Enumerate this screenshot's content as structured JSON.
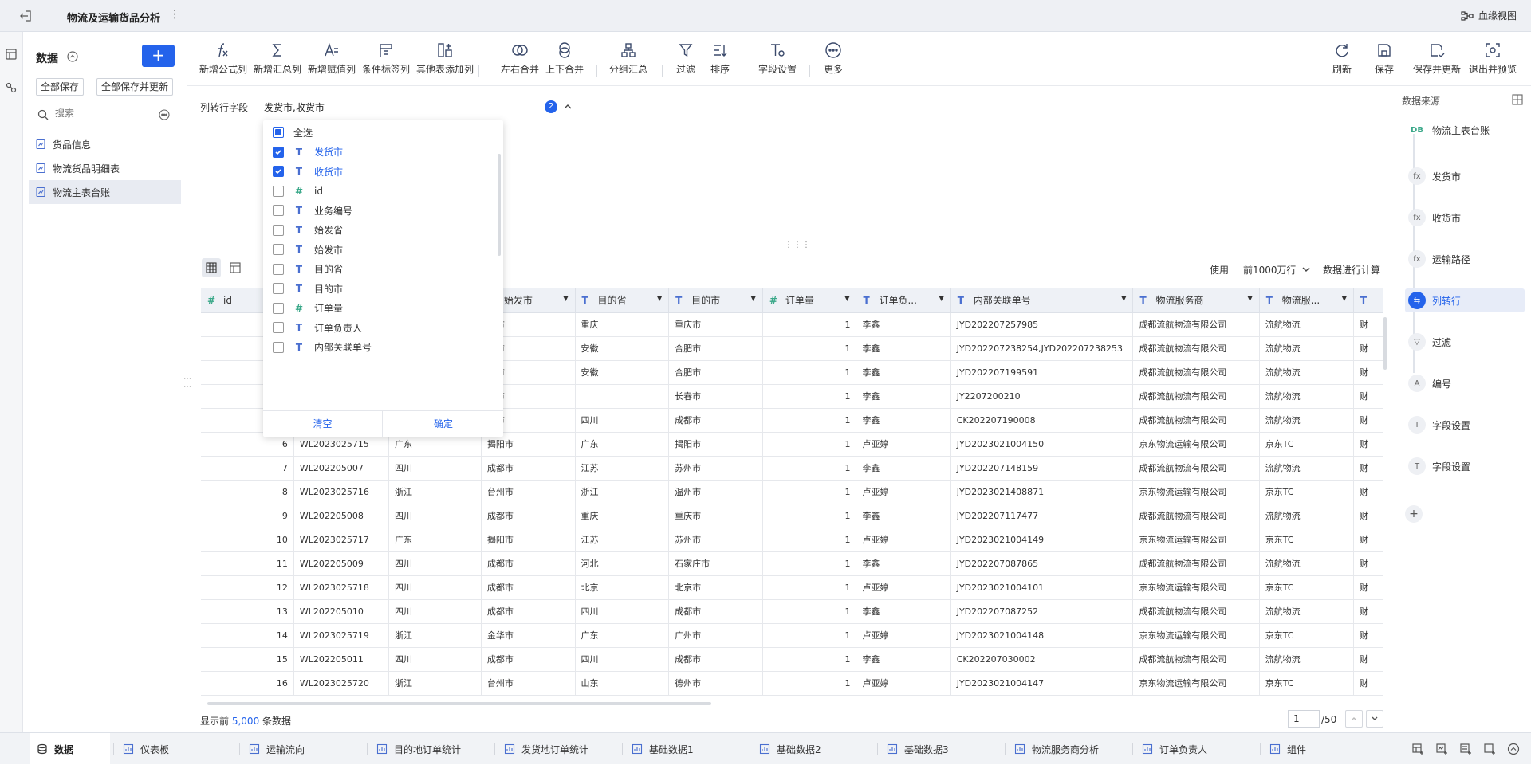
{
  "topbar": {
    "title": "物流及运输货品分析",
    "lineage": "血缘视图"
  },
  "sidebar": {
    "title": "数据",
    "save_all": "全部保存",
    "save_all_update": "全部保存并更新",
    "search_placeholder": "搜索",
    "items": [
      "货品信息",
      "物流货品明细表",
      "物流主表台账"
    ]
  },
  "toolbar": {
    "tools": [
      "新增公式列",
      "新增汇总列",
      "新增赋值列",
      "条件标签列",
      "其他表添加列",
      "左右合并",
      "上下合并",
      "分组汇总",
      "过滤",
      "排序",
      "字段设置",
      "更多"
    ],
    "right": [
      "刷新",
      "保存",
      "保存并更新",
      "退出并预览"
    ]
  },
  "config": {
    "label": "列转行字段",
    "value": "发货市,收货市",
    "count": "2"
  },
  "dropdown": {
    "options": [
      {
        "label": "全选",
        "type": "",
        "state": "part"
      },
      {
        "label": "发货市",
        "type": "T",
        "state": "on"
      },
      {
        "label": "收货市",
        "type": "T",
        "state": "on"
      },
      {
        "label": "id",
        "type": "#",
        "state": "off"
      },
      {
        "label": "业务编号",
        "type": "T",
        "state": "off"
      },
      {
        "label": "始发省",
        "type": "T",
        "state": "off"
      },
      {
        "label": "始发市",
        "type": "T",
        "state": "off"
      },
      {
        "label": "目的省",
        "type": "T",
        "state": "off"
      },
      {
        "label": "目的市",
        "type": "T",
        "state": "off"
      },
      {
        "label": "订单量",
        "type": "#",
        "state": "off"
      },
      {
        "label": "订单负责人",
        "type": "T",
        "state": "off"
      },
      {
        "label": "内部关联单号",
        "type": "T",
        "state": "off"
      }
    ],
    "clear": "清空",
    "confirm": "确定"
  },
  "gridhead": {
    "use": "使用",
    "limit": "前1000万行",
    "calc": "数据进行计算"
  },
  "table": {
    "columns": [
      {
        "label": "id",
        "type": "#"
      },
      {
        "label": "",
        "type": "T"
      },
      {
        "label": "",
        "type": "T"
      },
      {
        "label": "始发市",
        "type": "T"
      },
      {
        "label": "目的省",
        "type": "T"
      },
      {
        "label": "目的市",
        "type": "T"
      },
      {
        "label": "订单量",
        "type": "#"
      },
      {
        "label": "订单负...",
        "type": "T"
      },
      {
        "label": "内部关联单号",
        "type": "T"
      },
      {
        "label": "物流服务商",
        "type": "T"
      },
      {
        "label": "物流服...",
        "type": "T"
      },
      {
        "label": "",
        "type": "T"
      }
    ],
    "rows": [
      [
        "",
        "",
        "",
        "都市",
        "重庆",
        "重庆市",
        "1",
        "李鑫",
        "JYD202207257985",
        "成都流航物流有限公司",
        "流航物流",
        "财"
      ],
      [
        "",
        "",
        "",
        "都市",
        "安徽",
        "合肥市",
        "1",
        "李鑫",
        "JYD202207238254,JYD202207238253",
        "成都流航物流有限公司",
        "流航物流",
        "财"
      ],
      [
        "",
        "",
        "",
        "都市",
        "安徽",
        "合肥市",
        "1",
        "李鑫",
        "JYD202207199591",
        "成都流航物流有限公司",
        "流航物流",
        "财"
      ],
      [
        "",
        "",
        "",
        "都市",
        "",
        "长春市",
        "1",
        "李鑫",
        "JY2207200210",
        "成都流航物流有限公司",
        "流航物流",
        "财"
      ],
      [
        "",
        "",
        "",
        "都市",
        "四川",
        "成都市",
        "1",
        "李鑫",
        "CK202207190008",
        "成都流航物流有限公司",
        "流航物流",
        "财"
      ],
      [
        "6",
        "WL2023025715",
        "广东",
        "揭阳市",
        "广东",
        "揭阳市",
        "1",
        "卢亚婷",
        "JYD2023021004150",
        "京东物流运输有限公司",
        "京东TC",
        "财"
      ],
      [
        "7",
        "WL202205007",
        "四川",
        "成都市",
        "江苏",
        "苏州市",
        "1",
        "李鑫",
        "JYD202207148159",
        "成都流航物流有限公司",
        "流航物流",
        "财"
      ],
      [
        "8",
        "WL2023025716",
        "浙江",
        "台州市",
        "浙江",
        "温州市",
        "1",
        "卢亚婷",
        "JYD2023021408871",
        "京东物流运输有限公司",
        "京东TC",
        "财"
      ],
      [
        "9",
        "WL202205008",
        "四川",
        "成都市",
        "重庆",
        "重庆市",
        "1",
        "李鑫",
        "JYD202207117477",
        "成都流航物流有限公司",
        "流航物流",
        "财"
      ],
      [
        "10",
        "WL2023025717",
        "广东",
        "揭阳市",
        "江苏",
        "苏州市",
        "1",
        "卢亚婷",
        "JYD2023021004149",
        "京东物流运输有限公司",
        "京东TC",
        "财"
      ],
      [
        "11",
        "WL202205009",
        "四川",
        "成都市",
        "河北",
        "石家庄市",
        "1",
        "李鑫",
        "JYD202207087865",
        "成都流航物流有限公司",
        "流航物流",
        "财"
      ],
      [
        "12",
        "WL2023025718",
        "四川",
        "成都市",
        "北京",
        "北京市",
        "1",
        "卢亚婷",
        "JYD2023021004101",
        "京东物流运输有限公司",
        "京东TC",
        "财"
      ],
      [
        "13",
        "WL202205010",
        "四川",
        "成都市",
        "四川",
        "成都市",
        "1",
        "李鑫",
        "JYD202207087252",
        "成都流航物流有限公司",
        "流航物流",
        "财"
      ],
      [
        "14",
        "WL2023025719",
        "浙江",
        "金华市",
        "广东",
        "广州市",
        "1",
        "卢亚婷",
        "JYD2023021004148",
        "京东物流运输有限公司",
        "京东TC",
        "财"
      ],
      [
        "15",
        "WL202205011",
        "四川",
        "成都市",
        "四川",
        "成都市",
        "1",
        "李鑫",
        "CK202207030002",
        "成都流航物流有限公司",
        "流航物流",
        "财"
      ],
      [
        "16",
        "WL2023025720",
        "浙江",
        "台州市",
        "山东",
        "德州市",
        "1",
        "卢亚婷",
        "JYD2023021004147",
        "京东物流运输有限公司",
        "京东TC",
        "财"
      ]
    ]
  },
  "footer": {
    "prefix": "显示前",
    "count": "5,000",
    "suffix": "条数据",
    "page": "1",
    "total": "/50"
  },
  "flow": {
    "title": "数据来源",
    "nodes": [
      {
        "label": "物流主表台账",
        "badge": "DB",
        "kind": "src"
      },
      {
        "label": "发货市",
        "badge": "fx",
        "kind": ""
      },
      {
        "label": "收货市",
        "badge": "fx",
        "kind": ""
      },
      {
        "label": "运输路径",
        "badge": "fx",
        "kind": ""
      },
      {
        "label": "列转行",
        "badge": "⇆",
        "kind": "active"
      },
      {
        "label": "过滤",
        "badge": "▽",
        "kind": ""
      },
      {
        "label": "编号",
        "badge": "A",
        "kind": ""
      },
      {
        "label": "字段设置",
        "badge": "T",
        "kind": ""
      },
      {
        "label": "字段设置",
        "badge": "T",
        "kind": ""
      }
    ]
  },
  "tabs": [
    "数据",
    "仪表板",
    "运输流向",
    "目的地订单统计",
    "发货地订单统计",
    "基础数据1",
    "基础数据2",
    "基础数据3",
    "物流服务商分析",
    "订单负责人",
    "组件"
  ]
}
